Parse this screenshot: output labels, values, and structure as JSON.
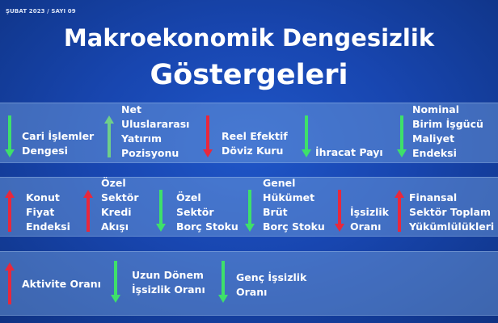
{
  "issue": "ŞUBAT 2023 / SAYI 09",
  "title": {
    "line1": "Makroekonomik Dengesizlik",
    "line2": "Göstergeleri"
  },
  "colors": {
    "up": "#e8283c",
    "down": "#3ee06a",
    "accent_up_alt": "#6fcf8a"
  },
  "indicators": [
    {
      "label": "Cari İşlemler Dengesi",
      "lines": [
        "Cari İşlemler",
        "Dengesi"
      ],
      "arrow": "down",
      "arrow_color": "green"
    },
    {
      "label": "Net Uluslararası Yatırım Pozisyonu",
      "lines": [
        "Net",
        "Uluslararası",
        "Yatırım",
        "Pozisyonu"
      ],
      "arrow": "up",
      "arrow_color": "green"
    },
    {
      "label": "Reel Efektif Döviz Kuru",
      "lines": [
        "Reel Efektif",
        "Döviz Kuru"
      ],
      "arrow": "down",
      "arrow_color": "red"
    },
    {
      "label": "İhracat Payı",
      "lines": [
        "İhracat Payı"
      ],
      "arrow": "down",
      "arrow_color": "green"
    },
    {
      "label": "Nominal Birim İşgücü Maliyet Endeksi",
      "lines": [
        "Nominal",
        "Birim İşgücü",
        "Maliyet",
        "Endeksi"
      ],
      "arrow": "down",
      "arrow_color": "green"
    },
    {
      "label": "Konut Fiyat Endeksi",
      "lines": [
        "Konut",
        "Fiyat",
        "Endeksi"
      ],
      "arrow": "up",
      "arrow_color": "red"
    },
    {
      "label": "Özel Sektör Kredi Akışı",
      "lines": [
        "Özel",
        "Sektör",
        "Kredi",
        "Akışı"
      ],
      "arrow": "up",
      "arrow_color": "red"
    },
    {
      "label": "Özel Sektör Borç Stoku",
      "lines": [
        "Özel",
        "Sektör",
        "Borç Stoku"
      ],
      "arrow": "down",
      "arrow_color": "green"
    },
    {
      "label": "Genel Hükümet Brüt Borç Stoku",
      "lines": [
        "Genel",
        "Hükümet",
        "Brüt",
        "Borç Stoku"
      ],
      "arrow": "down",
      "arrow_color": "green"
    },
    {
      "label": "İşsizlik Oranı",
      "lines": [
        "İşsizlik",
        "Oranı"
      ],
      "arrow": "down",
      "arrow_color": "red"
    },
    {
      "label": "Finansal Sektör Toplam Yükümlülükleri",
      "lines": [
        "Finansal",
        "Sektör Toplam",
        "Yükümlülükleri"
      ],
      "arrow": "up",
      "arrow_color": "red"
    },
    {
      "label": "Aktivite Oranı",
      "lines": [
        "Aktivite Oranı"
      ],
      "arrow": "up",
      "arrow_color": "red"
    },
    {
      "label": "Uzun Dönem İşsizlik Oranı",
      "lines": [
        "Uzun Dönem",
        "İşsizlik Oranı"
      ],
      "arrow": "down",
      "arrow_color": "green"
    },
    {
      "label": "Genç İşsizlik Oranı",
      "lines": [
        "Genç İşsizlik",
        "Oranı"
      ],
      "arrow": "down",
      "arrow_color": "green"
    }
  ]
}
